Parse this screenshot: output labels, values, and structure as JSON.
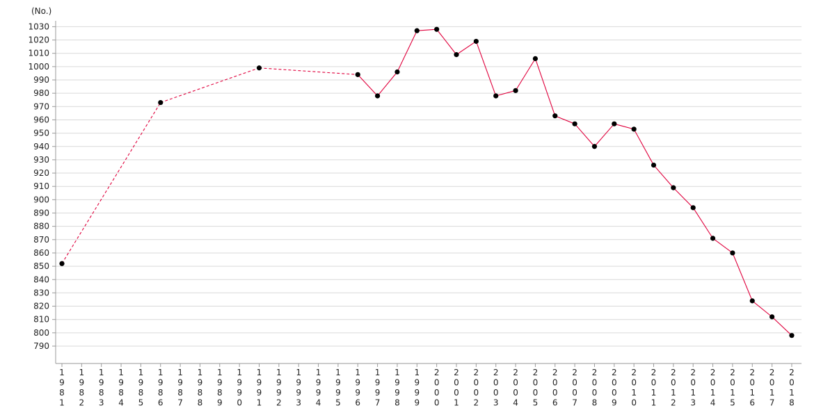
{
  "chart_data": {
    "type": "line",
    "unit_label": "(No.)",
    "categories": [
      "1981",
      "1982",
      "1983",
      "1984",
      "1985",
      "1986",
      "1987",
      "1988",
      "1989",
      "1990",
      "1991",
      "1992",
      "1993",
      "1994",
      "1995",
      "1996",
      "1997",
      "1998",
      "1999",
      "2000",
      "2001",
      "2002",
      "2003",
      "2004",
      "2005",
      "2006",
      "2007",
      "2008",
      "2009",
      "2010",
      "2011",
      "2012",
      "2013",
      "2014",
      "2015",
      "2016",
      "2017",
      "2018"
    ],
    "series": [
      {
        "points": [
          {
            "x": "1981",
            "y": 852
          },
          {
            "x": "1986",
            "y": 973
          },
          {
            "x": "1991",
            "y": 999
          },
          {
            "x": "1996",
            "y": 994
          },
          {
            "x": "1997",
            "y": 978
          },
          {
            "x": "1998",
            "y": 996
          },
          {
            "x": "1999",
            "y": 1027
          },
          {
            "x": "2000",
            "y": 1028
          },
          {
            "x": "2001",
            "y": 1009
          },
          {
            "x": "2002",
            "y": 1019
          },
          {
            "x": "2003",
            "y": 978
          },
          {
            "x": "2004",
            "y": 982
          },
          {
            "x": "2005",
            "y": 1006
          },
          {
            "x": "2006",
            "y": 963
          },
          {
            "x": "2007",
            "y": 957
          },
          {
            "x": "2008",
            "y": 940
          },
          {
            "x": "2009",
            "y": 957
          },
          {
            "x": "2010",
            "y": 953
          },
          {
            "x": "2011",
            "y": 926
          },
          {
            "x": "2012",
            "y": 909
          },
          {
            "x": "2013",
            "y": 894
          },
          {
            "x": "2014",
            "y": 871
          },
          {
            "x": "2015",
            "y": 860
          },
          {
            "x": "2016",
            "y": 824
          },
          {
            "x": "2017",
            "y": 812
          },
          {
            "x": "2018",
            "y": 798
          }
        ],
        "line_color": "#e0003c",
        "marker_color": "#000000",
        "dashed_until": "1996"
      }
    ],
    "yticks": [
      790,
      800,
      810,
      820,
      830,
      840,
      850,
      860,
      870,
      880,
      890,
      900,
      910,
      920,
      930,
      940,
      950,
      960,
      970,
      980,
      990,
      1000,
      1010,
      1020,
      1030
    ],
    "ylim": [
      780,
      1035
    ],
    "grid": true,
    "legend": "none"
  }
}
